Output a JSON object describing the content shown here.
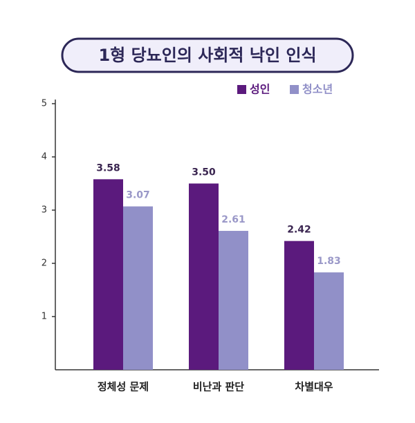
{
  "chart_data": {
    "type": "bar",
    "title": "1형 당뇨인의 사회적 낙인 인식",
    "categories": [
      "정체성 문제",
      "비난과 판단",
      "차별대우"
    ],
    "series": [
      {
        "name": "성인",
        "color": "#5b1a7d",
        "values": [
          3.58,
          3.5,
          2.42
        ],
        "value_labels": [
          "3.58",
          "3.50",
          "2.42"
        ]
      },
      {
        "name": "청소년",
        "color": "#9190c8",
        "values": [
          3.07,
          2.61,
          1.83
        ],
        "value_labels": [
          "3.07",
          "2.61",
          "1.83"
        ]
      }
    ],
    "ylim": [
      0,
      5
    ],
    "yticks": [
      1,
      2,
      3,
      4,
      5
    ],
    "legend": "top-right"
  }
}
